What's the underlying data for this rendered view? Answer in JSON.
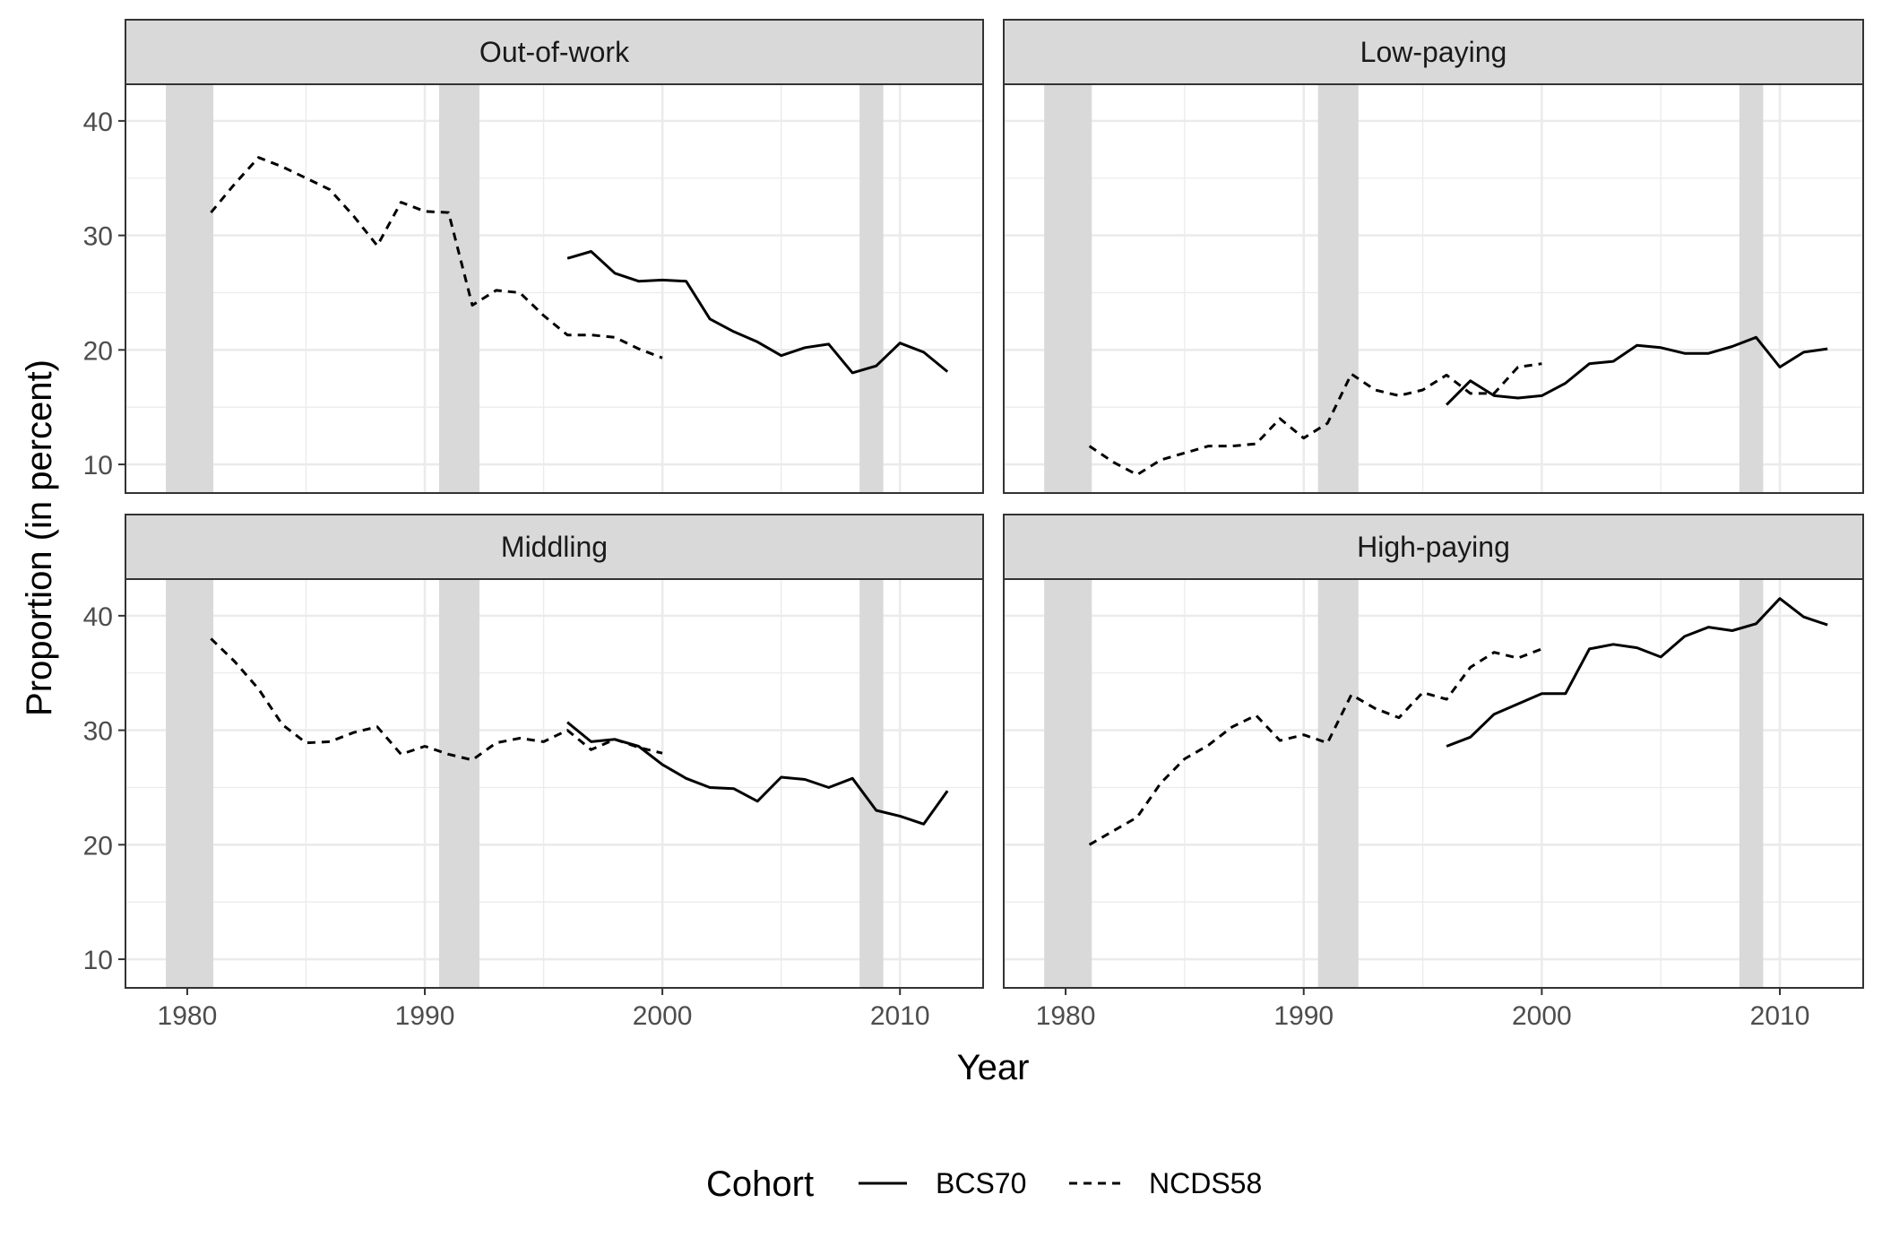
{
  "chart_data": {
    "type": "line",
    "x_axis_title": "Year",
    "y_axis_title": "Proportion (in percent)",
    "xlim": [
      1977.4,
      2013.5
    ],
    "ylim": [
      7.5,
      43.2
    ],
    "x_ticks": [
      1980,
      1990,
      2000,
      2010
    ],
    "y_ticks": [
      10,
      20,
      30,
      40
    ],
    "x_minor_ticks": [
      1985,
      1995,
      2005
    ],
    "y_minor_ticks": [
      15,
      25,
      35
    ],
    "grid": true,
    "recession_shading": [
      [
        1979.1,
        1981.1
      ],
      [
        1990.6,
        1992.3
      ],
      [
        2008.3,
        2009.3
      ]
    ],
    "legend": {
      "title": "Cohort",
      "position": "bottom",
      "entries": [
        {
          "label": "BCS70",
          "linetype": "solid"
        },
        {
          "label": "NCDS58",
          "linetype": "dashed"
        }
      ]
    },
    "panels": [
      {
        "title": "Out-of-work",
        "series": [
          {
            "name": "NCDS58",
            "linetype": "dashed",
            "x": [
              1981,
              1982,
              1983,
              1984,
              1985,
              1986,
              1987,
              1988,
              1989,
              1990,
              1991,
              1992,
              1993,
              1994,
              1995,
              1996,
              1997,
              1998,
              1999,
              2000
            ],
            "y": [
              32.0,
              34.5,
              36.8,
              36.0,
              35.0,
              34.0,
              31.7,
              29.1,
              32.9,
              32.1,
              32.0,
              23.9,
              25.2,
              25.0,
              23.0,
              21.3,
              21.3,
              21.1,
              20.1,
              19.3
            ]
          },
          {
            "name": "BCS70",
            "linetype": "solid",
            "x": [
              1996,
              1997,
              1998,
              1999,
              2000,
              2001,
              2002,
              2003,
              2004,
              2005,
              2006,
              2007,
              2008,
              2009,
              2010,
              2011,
              2012
            ],
            "y": [
              28.0,
              28.6,
              26.7,
              26.0,
              26.1,
              26.0,
              22.7,
              21.6,
              20.7,
              19.5,
              20.2,
              20.5,
              18.0,
              18.6,
              20.6,
              19.8,
              18.1
            ]
          }
        ]
      },
      {
        "title": "Low-paying",
        "series": [
          {
            "name": "NCDS58",
            "linetype": "dashed",
            "x": [
              1981,
              1982,
              1983,
              1984,
              1985,
              1986,
              1987,
              1988,
              1989,
              1990,
              1991,
              1992,
              1993,
              1994,
              1995,
              1996,
              1997,
              1998,
              1999,
              2000
            ],
            "y": [
              11.6,
              10.2,
              9.1,
              10.4,
              11.0,
              11.6,
              11.6,
              11.8,
              14.0,
              12.3,
              13.6,
              17.9,
              16.5,
              16.0,
              16.5,
              17.8,
              16.2,
              16.2,
              18.5,
              18.8
            ]
          },
          {
            "name": "BCS70",
            "linetype": "solid",
            "x": [
              1996,
              1997,
              1998,
              1999,
              2000,
              2001,
              2002,
              2003,
              2004,
              2005,
              2006,
              2007,
              2008,
              2009,
              2010,
              2011,
              2012
            ],
            "y": [
              15.2,
              17.3,
              16.0,
              15.8,
              16.0,
              17.1,
              18.8,
              19.0,
              20.4,
              20.2,
              19.7,
              19.7,
              20.3,
              21.1,
              18.5,
              19.8,
              20.1
            ]
          }
        ]
      },
      {
        "title": "Middling",
        "series": [
          {
            "name": "NCDS58",
            "linetype": "dashed",
            "x": [
              1981,
              1982,
              1983,
              1984,
              1985,
              1986,
              1987,
              1988,
              1989,
              1990,
              1991,
              1992,
              1993,
              1994,
              1995,
              1996,
              1997,
              1998,
              1999,
              2000
            ],
            "y": [
              38.0,
              36.0,
              33.6,
              30.5,
              28.9,
              29.0,
              29.8,
              30.3,
              27.9,
              28.6,
              27.9,
              27.4,
              28.9,
              29.3,
              29.0,
              30.0,
              28.3,
              29.2,
              28.5,
              28.0
            ]
          },
          {
            "name": "BCS70",
            "linetype": "solid",
            "x": [
              1996,
              1997,
              1998,
              1999,
              2000,
              2001,
              2002,
              2003,
              2004,
              2005,
              2006,
              2007,
              2008,
              2009,
              2010,
              2011,
              2012
            ],
            "y": [
              30.7,
              29.0,
              29.2,
              28.6,
              27.0,
              25.8,
              25.0,
              24.9,
              23.8,
              25.9,
              25.7,
              25.0,
              25.8,
              23.0,
              22.5,
              21.8,
              24.7
            ]
          }
        ]
      },
      {
        "title": "High-paying",
        "series": [
          {
            "name": "NCDS58",
            "linetype": "dashed",
            "x": [
              1981,
              1982,
              1983,
              1984,
              1985,
              1986,
              1987,
              1988,
              1989,
              1990,
              1991,
              1992,
              1993,
              1994,
              1995,
              1996,
              1997,
              1998,
              1999,
              2000
            ],
            "y": [
              20.0,
              21.2,
              22.4,
              25.4,
              27.5,
              28.7,
              30.3,
              31.3,
              29.1,
              29.6,
              28.9,
              33.1,
              31.9,
              31.1,
              33.3,
              32.7,
              35.5,
              36.8,
              36.3,
              37.1
            ]
          },
          {
            "name": "BCS70",
            "linetype": "solid",
            "x": [
              1996,
              1997,
              1998,
              1999,
              2000,
              2001,
              2002,
              2003,
              2004,
              2005,
              2006,
              2007,
              2008,
              2009,
              2010,
              2011,
              2012
            ],
            "y": [
              28.6,
              29.4,
              31.4,
              32.3,
              33.2,
              33.2,
              37.1,
              37.5,
              37.2,
              36.4,
              38.2,
              39.0,
              38.7,
              39.3,
              41.5,
              39.9,
              39.2
            ]
          }
        ]
      }
    ]
  }
}
